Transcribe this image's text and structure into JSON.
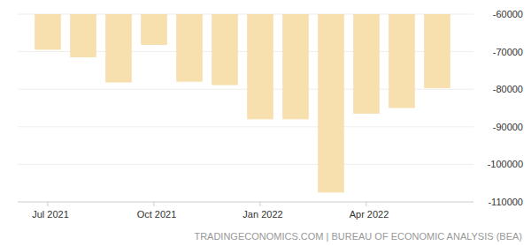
{
  "chart_data": {
    "type": "bar",
    "source": "TRADINGECONOMICS.COM | BUREAU OF ECONOMIC ANALYSIS (BEA)",
    "categories": [
      "Jul 2021",
      null,
      null,
      "Oct 2021",
      null,
      null,
      "Jan 2022",
      null,
      null,
      "Apr 2022",
      null,
      null
    ],
    "values": [
      -69500,
      -71500,
      -78200,
      -68200,
      -78000,
      -78900,
      -88000,
      -88000,
      -107500,
      -86500,
      -85000,
      -79700
    ],
    "color": "#f7dfae",
    "ylim": [
      -110000,
      -60000
    ],
    "yticks": [
      -110000,
      -100000,
      -90000,
      -80000,
      -70000,
      -60000
    ],
    "grid": true
  }
}
